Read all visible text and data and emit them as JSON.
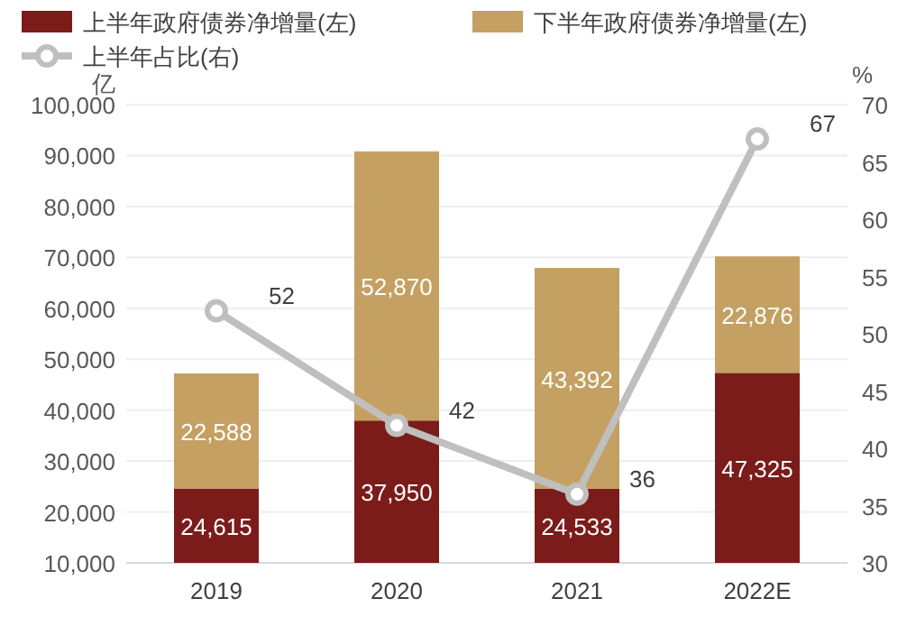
{
  "chart_data": {
    "type": "bar",
    "stacked": true,
    "ylabel": "亿",
    "y2label": "%",
    "categories": [
      "2019",
      "2020",
      "2021",
      "2022E"
    ],
    "series": [
      {
        "name": "上半年政府债券净增量(左)",
        "color": "#7b1c1a",
        "values": [
          24615,
          37950,
          24533,
          47325
        ],
        "value_labels": [
          "24,615",
          "37,950",
          "24,533",
          "47,325"
        ]
      },
      {
        "name": "下半年政府债券净增量(左)",
        "color": "#c4a062",
        "values": [
          22588,
          52870,
          43392,
          22876
        ],
        "value_labels": [
          "22,588",
          "52,870",
          "43,392",
          "22,876"
        ]
      },
      {
        "name": "上半年占比(右)",
        "type": "line",
        "axis": "y2",
        "color": "#bfbfbf",
        "marker": "circle",
        "values": [
          52,
          42,
          36,
          67
        ],
        "value_labels": [
          "52",
          "42",
          "36",
          "67"
        ]
      }
    ],
    "ylim": [
      10000,
      100000
    ],
    "yticks": [
      {
        "value": 10000,
        "label": "10,000"
      },
      {
        "value": 20000,
        "label": "20,000"
      },
      {
        "value": 30000,
        "label": "30,000"
      },
      {
        "value": 40000,
        "label": "40,000"
      },
      {
        "value": 50000,
        "label": "50,000"
      },
      {
        "value": 60000,
        "label": "60,000"
      },
      {
        "value": 70000,
        "label": "70,000"
      },
      {
        "value": 80000,
        "label": "80,000"
      },
      {
        "value": 90000,
        "label": "90,000"
      },
      {
        "value": 100000,
        "label": "100,000"
      }
    ],
    "y2lim": [
      30,
      70
    ],
    "y2ticks": [
      30,
      35,
      40,
      45,
      50,
      55,
      60,
      65,
      70
    ],
    "grid": "y",
    "legend": "top"
  }
}
